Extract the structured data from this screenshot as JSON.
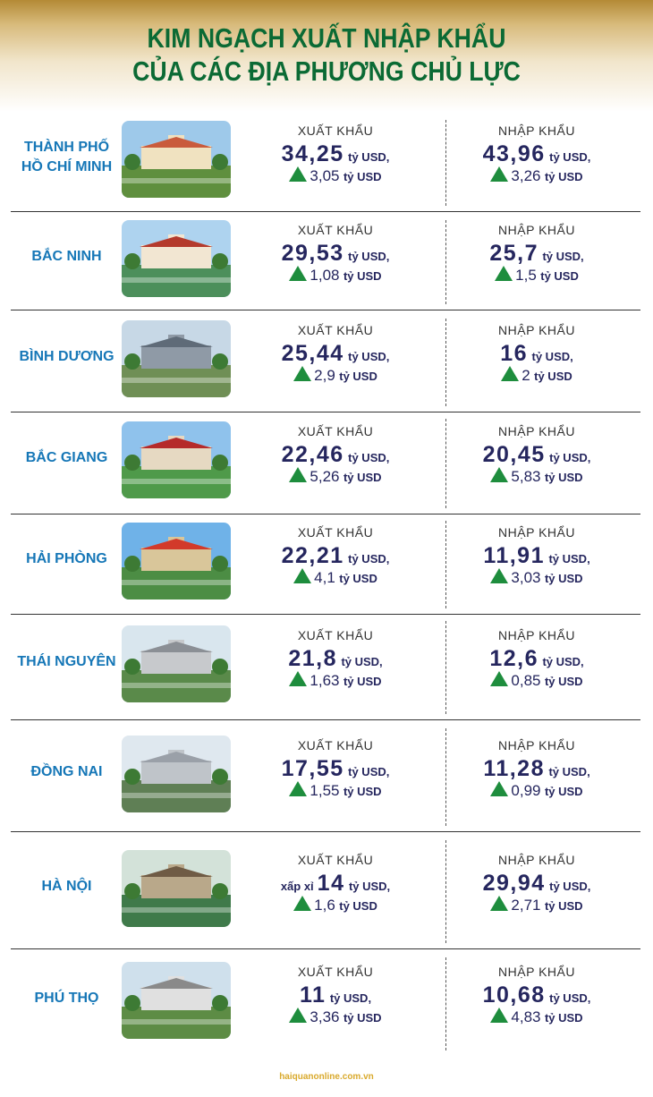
{
  "title": {
    "line1": "KIM NGẠCH XUẤT NHẬP KHẨU",
    "line2": "CỦA CÁC ĐỊA PHƯƠNG CHỦ LỰC"
  },
  "labels": {
    "export": "XUẤT KHẨU",
    "import": "NHẬP KHẨU",
    "unit": "tỷ USD,",
    "inc_unit": "tỷ USD"
  },
  "icons": {
    "increase": "green-up-triangle-icon"
  },
  "colors": {
    "title": "#0b6a34",
    "city": "#1677b7",
    "value": "#25265e",
    "arrow": "#1e8d3d",
    "source": "#d9a92c"
  },
  "rows": [
    {
      "city_line1": "THÀNH PHỐ",
      "city_line2": "HỒ CHÍ MINH",
      "export_prefix": "",
      "export_value": "34,25",
      "export_increase": "3,05",
      "import_value": "43,96",
      "import_increase": "3,26"
    },
    {
      "city_line1": "BẮC NINH",
      "city_line2": "",
      "export_prefix": "",
      "export_value": "29,53",
      "export_increase": "1,08",
      "import_value": "25,7",
      "import_increase": "1,5"
    },
    {
      "city_line1": "BÌNH DƯƠNG",
      "city_line2": "",
      "export_prefix": "",
      "export_value": "25,44",
      "export_increase": "2,9",
      "import_value": "16",
      "import_increase": "2"
    },
    {
      "city_line1": "BẮC GIANG",
      "city_line2": "",
      "export_prefix": "",
      "export_value": "22,46",
      "export_increase": "5,26",
      "import_value": "20,45",
      "import_increase": "5,83"
    },
    {
      "city_line1": "HẢI PHÒNG",
      "city_line2": "",
      "export_prefix": "",
      "export_value": "22,21",
      "export_increase": "4,1",
      "import_value": "11,91",
      "import_increase": "3,03"
    },
    {
      "city_line1": "THÁI NGUYÊN",
      "city_line2": "",
      "export_prefix": "",
      "export_value": "21,8",
      "export_increase": "1,63",
      "import_value": "12,6",
      "import_increase": "0,85"
    },
    {
      "city_line1": "ĐỒNG NAI",
      "city_line2": "",
      "export_prefix": "",
      "export_value": "17,55",
      "export_increase": "1,55",
      "import_value": "11,28",
      "import_increase": "0,99"
    },
    {
      "city_line1": "HÀ NỘI",
      "city_line2": "",
      "export_prefix": "xấp xỉ",
      "export_value": "14",
      "export_increase": "1,6",
      "import_value": "29,94",
      "import_increase": "2,71"
    },
    {
      "city_line1": "PHÚ THỌ",
      "city_line2": "",
      "export_prefix": "",
      "export_value": "11",
      "export_increase": "3,36",
      "import_value": "10,68",
      "import_increase": "4,83"
    }
  ],
  "source": "haiquanonline.com.vn"
}
